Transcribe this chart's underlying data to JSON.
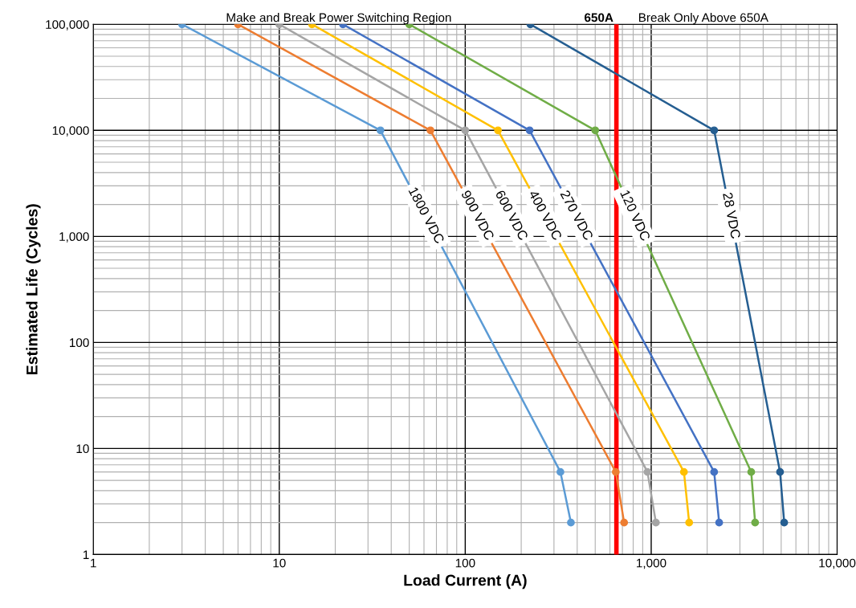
{
  "chart_data": {
    "type": "line",
    "xlabel": "Load Current (A)",
    "ylabel": "Estimated Life (Cycles)",
    "log": "xy",
    "xlim": [
      1,
      10000
    ],
    "ylim": [
      1,
      100000
    ],
    "xticks": [
      1,
      10,
      100,
      {
        "value": 1000,
        "label": "1,000"
      },
      {
        "value": 10000,
        "label": "10,000"
      }
    ],
    "yticks": [
      1,
      10,
      100,
      {
        "value": 1000,
        "label": "1,000"
      },
      {
        "value": 10000,
        "label": "10,000"
      },
      {
        "value": 100000,
        "label": "100,000"
      }
    ],
    "grid": true,
    "legend": false,
    "marker": "circle",
    "line_style": "solid",
    "series": [
      {
        "name": "1800 VDC",
        "color": "#5b9bd5",
        "x": [
          3,
          35,
          325,
          370
        ],
        "values": [
          100000,
          10000,
          6,
          2
        ]
      },
      {
        "name": "900 VDC",
        "color": "#ed7d31",
        "x": [
          6,
          65,
          645,
          715
        ],
        "values": [
          100000,
          10000,
          6,
          2
        ]
      },
      {
        "name": "600 VDC",
        "color": "#a5a5a5",
        "x": [
          10,
          100,
          955,
          1060
        ],
        "values": [
          100000,
          10000,
          6,
          2
        ]
      },
      {
        "name": "400 VDC",
        "color": "#ffc000",
        "x": [
          15,
          150,
          1500,
          1600
        ],
        "values": [
          100000,
          10000,
          6,
          2
        ]
      },
      {
        "name": "270 VDC",
        "color": "#4472c4",
        "x": [
          22,
          222,
          2180,
          2320
        ],
        "values": [
          100000,
          10000,
          6,
          2
        ]
      },
      {
        "name": "120 VDC",
        "color": "#70ad47",
        "x": [
          50,
          500,
          3450,
          3620
        ],
        "values": [
          100000,
          10000,
          6,
          2
        ]
      },
      {
        "name": "28 VDC",
        "color": "#255e91",
        "x": [
          224,
          2180,
          4930,
          5190
        ],
        "values": [
          100000,
          10000,
          6,
          2
        ]
      }
    ],
    "ref_lines": [
      {
        "axis": "x",
        "value": 650,
        "label": "650A",
        "color": "#ff0000",
        "line_style": "solid"
      }
    ],
    "annotations": [
      "Make and Break Power Switching Region",
      "Break Only Above 650A"
    ]
  }
}
